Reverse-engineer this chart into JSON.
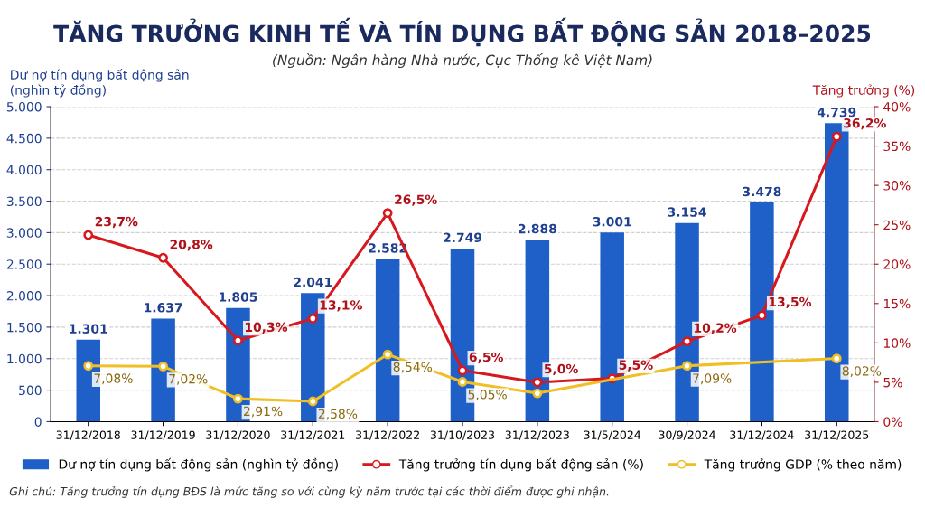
{
  "chart_data": {
    "type": "bar",
    "title": "TĂNG TRƯỞNG KINH TẾ VÀ TÍN DỤNG BẤT ĐỘNG SẢN 2018–2025",
    "subtitle": "(Nguồn: Ngân hàng Nhà nước, Cục Thống kê Việt Nam)",
    "ylabel": "Dư nợ tín dụng bất động sản\n(nghìn tỷ đồng)",
    "y2label": "Tăng trưởng (%)",
    "categories": [
      "31/12/2018",
      "31/12/2019",
      "31/12/2020",
      "31/12/2021",
      "31/12/2022",
      "31/10/2023",
      "31/12/2023",
      "31/5/2024",
      "30/9/2024",
      "31/12/2024",
      "31/12/2025"
    ],
    "series": [
      {
        "name": "Dư nợ tín dụng bất động sản (nghìn tỷ đồng)",
        "color": "#1f5fc8",
        "values": [
          1301,
          1637,
          1805,
          2041,
          2582,
          2749,
          2888,
          3001,
          3154,
          3478,
          4739
        ],
        "value_labels": [
          "1.301",
          "1.637",
          "1.805",
          "2.041",
          "2.582",
          "2.749",
          "2.888",
          "3.001",
          "3.154",
          "3.478",
          "4.739"
        ]
      },
      {
        "name": "Tăng trưởng tín dụng bất động sản (%)",
        "type": "line",
        "axis": "y2",
        "color": "#d7191f",
        "marker": "circle",
        "values": [
          23.7,
          20.8,
          10.3,
          13.1,
          26.5,
          6.5,
          5.0,
          5.5,
          10.2,
          13.5,
          36.2
        ],
        "value_labels": [
          "23,7%",
          "20,8%",
          "10,3%",
          "13,1%",
          "26,5%",
          "6,5%",
          "5,0%",
          "5,5%",
          "10,2%",
          "13,5%",
          "36,2%"
        ]
      },
      {
        "name": "Tăng trưởng GDP (% theo năm)",
        "type": "line",
        "axis": "y2",
        "color": "#f0bf26",
        "marker": "circle",
        "values": [
          7.08,
          7.02,
          2.91,
          2.58,
          8.54,
          5.05,
          3.6,
          null,
          7.09,
          null,
          8.02
        ],
        "value_labels": [
          "7,08%",
          "7,02%",
          "2,91%",
          "2,58%",
          "8,54%",
          "5,05%",
          null,
          null,
          "7,09%",
          null,
          "8,02%"
        ]
      }
    ],
    "ylim": [
      0,
      5000
    ],
    "yticks": [
      {
        "value": 0,
        "label": "0"
      },
      {
        "value": 500,
        "label": "500"
      },
      {
        "value": 1000,
        "label": "1.000"
      },
      {
        "value": 1500,
        "label": "1.500"
      },
      {
        "value": 2000,
        "label": "2.000"
      },
      {
        "value": 2500,
        "label": "2.500"
      },
      {
        "value": 3000,
        "label": "3.000"
      },
      {
        "value": 3500,
        "label": "3.500"
      },
      {
        "value": 4000,
        "label": "4.000"
      },
      {
        "value": 4500,
        "label": "4.500"
      },
      {
        "value": 5000,
        "label": "5.000"
      }
    ],
    "y2lim": [
      0,
      40
    ],
    "y2ticks": [
      {
        "value": 0,
        "label": "0%"
      },
      {
        "value": 5,
        "label": "5%"
      },
      {
        "value": 10,
        "label": "10%"
      },
      {
        "value": 15,
        "label": "15%"
      },
      {
        "value": 20,
        "label": "20%"
      },
      {
        "value": 25,
        "label": "25%"
      },
      {
        "value": 30,
        "label": "30%"
      },
      {
        "value": 35,
        "label": "35%"
      },
      {
        "value": 40,
        "label": "40%"
      }
    ],
    "grid": "y",
    "legend": "bottom",
    "annotations": [
      "Ghi chú: Tăng trưởng tín dụng BĐS là mức tăng so với cùng kỳ năm trước tại các thời điểm được ghi nhận."
    ]
  }
}
